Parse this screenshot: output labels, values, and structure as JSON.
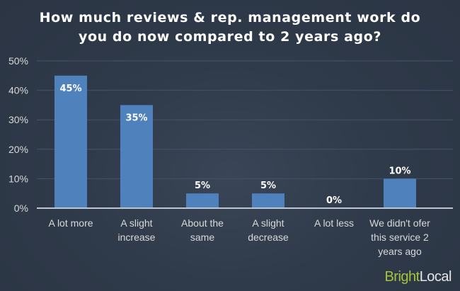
{
  "chart_data": {
    "type": "bar",
    "title_lines": [
      "How much reviews & rep. management work do",
      "you do now compared to 2 years ago?"
    ],
    "categories": [
      [
        "A lot more"
      ],
      [
        "A slight",
        "increase"
      ],
      [
        "About the",
        "same"
      ],
      [
        "A slight",
        "decrease"
      ],
      [
        "A lot less"
      ],
      [
        "We didn't ofer",
        "this service 2",
        "years ago"
      ]
    ],
    "values": [
      45,
      35,
      5,
      5,
      0,
      10
    ],
    "data_labels": [
      "45%",
      "35%",
      "5%",
      "5%",
      "0%",
      "10%"
    ],
    "ylim": [
      0,
      50
    ],
    "yticks": [
      "0%",
      "10%",
      "20%",
      "30%",
      "40%",
      "50%"
    ],
    "grid": true,
    "bar_color": "#4f81bd",
    "xlabel": "",
    "ylabel": ""
  },
  "branding": {
    "logo_part1": "Bright",
    "logo_part2": "Local",
    "logo_color": "#a4c43a"
  }
}
